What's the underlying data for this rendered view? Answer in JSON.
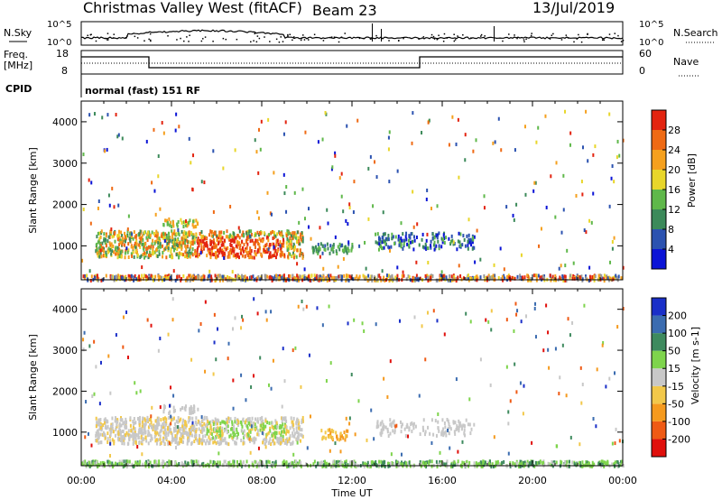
{
  "header": {
    "title": "Christmas Valley West (fitACF)",
    "beam": "Beam 23",
    "date": "13/Jul/2019"
  },
  "top_panels": {
    "nsky_label": "N.Sky",
    "nsky_ticks": [
      "10^5",
      "10^0"
    ],
    "nsearch_label": "N.Search",
    "nsearch_ticks": [
      "10^5",
      "10^0"
    ],
    "freq_label_1": "Freq.",
    "freq_label_2": "[MHz]",
    "freq_ticks": [
      "18",
      "8"
    ],
    "nave_label": "Nave",
    "nave_ticks": [
      "60",
      "0"
    ],
    "cpid_label": "CPID",
    "cpid_text": "normal (fast) 151 RF"
  },
  "chart_data": [
    {
      "type": "heatmap",
      "title": "",
      "xlabel": "",
      "ylabel": "Slant Range [km]",
      "xlim": [
        "00:00",
        "24:00"
      ],
      "ylim": [
        180,
        4500
      ],
      "yticks": [
        1000,
        2000,
        3000,
        4000
      ],
      "colorbar_label": "Power [dB]",
      "colorbar_ticks": [
        "4",
        "8",
        "12",
        "16",
        "20",
        "24",
        "28"
      ],
      "colorbar_colors": [
        "#0b14d6",
        "#2b52b0",
        "#3c8a5a",
        "#5fb84a",
        "#e8d62a",
        "#f5a01e",
        "#ef6a14",
        "#e32410"
      ],
      "ground_scatter_color": "#9a9a9a"
    },
    {
      "type": "heatmap",
      "title": "",
      "xlabel": "Time UT",
      "ylabel": "Slant Range [km]",
      "xlim": [
        "00:00",
        "24:00"
      ],
      "ylim": [
        180,
        4500
      ],
      "yticks": [
        1000,
        2000,
        3000,
        4000
      ],
      "xticks": [
        "00:00",
        "04:00",
        "08:00",
        "12:00",
        "16:00",
        "20:00",
        "00:00"
      ],
      "colorbar_label": "Velocity [m s-1]",
      "colorbar_ticks": [
        "200",
        "100",
        "50",
        "15",
        "-15",
        "-50",
        "-100",
        "-200"
      ],
      "colorbar_colors": [
        "#1a2fc8",
        "#3b6cb0",
        "#3e8a5e",
        "#7ed44c",
        "#c8c8c8",
        "#f2c84a",
        "#f59a1e",
        "#ef5a14",
        "#e0100c"
      ],
      "ground_scatter_color": "#c0c0c0"
    }
  ]
}
